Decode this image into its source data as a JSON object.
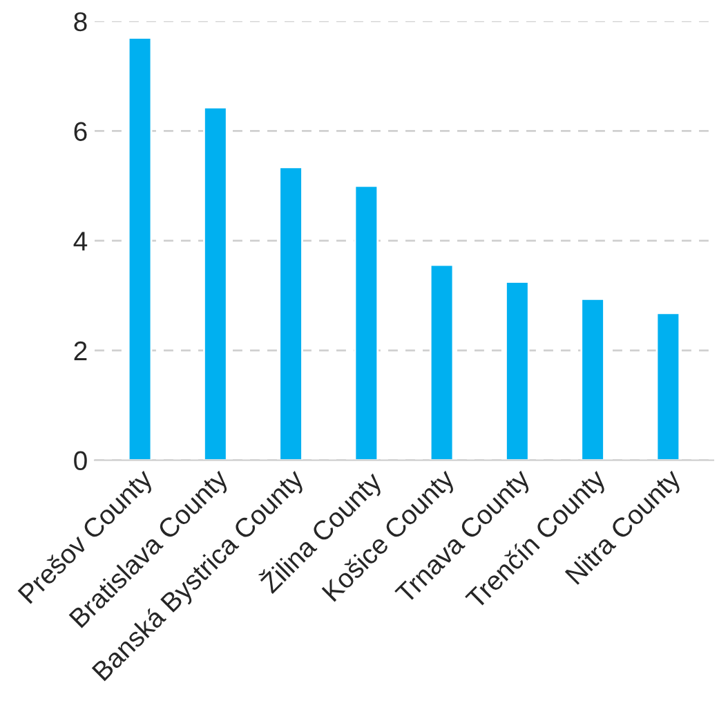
{
  "chart_data": {
    "type": "bar",
    "categories": [
      "Prešov County",
      "Bratislava County",
      "Banská Bystrica County",
      "Žilina County",
      "Košice County",
      "Trnava County",
      "Trenčín County",
      "Nitra County"
    ],
    "values": [
      7.7,
      6.43,
      5.34,
      5.0,
      3.56,
      3.25,
      2.94,
      2.68
    ],
    "color": "#00b0f0",
    "ylim": [
      0,
      8
    ],
    "yticks": [
      0,
      2,
      4,
      6,
      8
    ],
    "grid": "y"
  }
}
